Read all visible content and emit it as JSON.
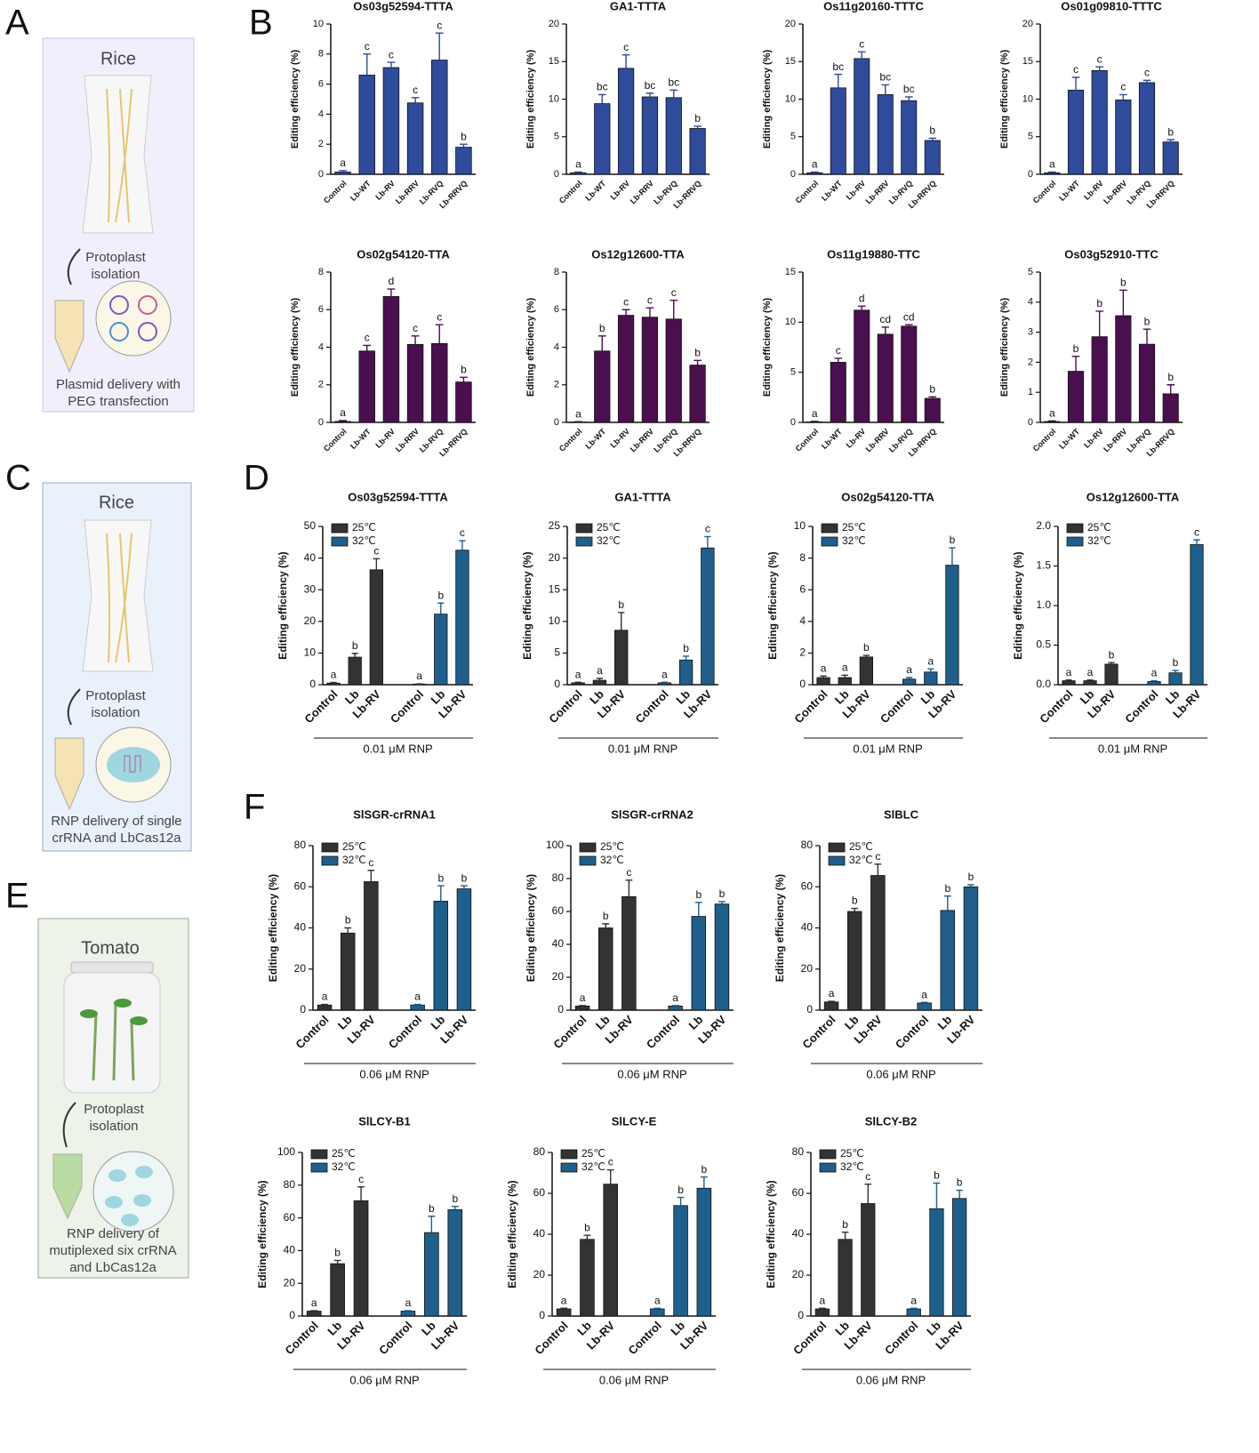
{
  "panel_labels": [
    "A",
    "B",
    "C",
    "D",
    "E",
    "F"
  ],
  "illustrations": [
    {
      "title": "Rice",
      "step": [
        "Protoplast",
        "isolation"
      ],
      "caption": [
        "Plasmid delivery with",
        "PEG transfection"
      ]
    },
    {
      "title": "Rice",
      "step": [
        "Protoplast",
        "isolation"
      ],
      "caption": [
        "RNP delivery of single",
        "crRNA and LbCas12a"
      ]
    },
    {
      "title": "Tomato",
      "step": [
        "Protoplast",
        "isolation"
      ],
      "caption": [
        "RNP delivery of",
        "mutiplexed six crRNA",
        "and LbCas12a"
      ]
    }
  ],
  "chart_data": [
    {
      "type": "bar",
      "title": "Os03g52594-TTTA",
      "ylabel": "Editing efficiency (%)",
      "color": "#2f4b9b",
      "categories": [
        "Control",
        "Lb-WT",
        "Lb-RV",
        "Lb-RRV",
        "Lb-RVQ",
        "Lb-RRVQ"
      ],
      "values": [
        0.15,
        6.6,
        7.1,
        4.75,
        7.6,
        1.8
      ],
      "errors": [
        0.1,
        1.4,
        0.35,
        0.35,
        1.8,
        0.2
      ],
      "annotations": [
        "a",
        "c",
        "c",
        "c",
        "c",
        "b"
      ],
      "ylim": [
        0,
        10
      ],
      "yticks": [
        0,
        2,
        4,
        6,
        8,
        10
      ]
    },
    {
      "type": "bar",
      "title": "GA1-TTTA",
      "ylabel": "Editing efficiency (%)",
      "color": "#2f4b9b",
      "categories": [
        "Control",
        "Lb-WT",
        "Lb-RV",
        "Lb-RRV",
        "Lb-RVQ",
        "Lb-RRVQ"
      ],
      "values": [
        0.2,
        9.4,
        14.1,
        10.3,
        10.2,
        6.1
      ],
      "errors": [
        0.1,
        1.2,
        1.8,
        0.5,
        1.0,
        0.3
      ],
      "annotations": [
        "a",
        "bc",
        "c",
        "bc",
        "bc",
        "b"
      ],
      "ylim": [
        0,
        20
      ],
      "yticks": [
        0,
        5,
        10,
        15,
        20
      ]
    },
    {
      "type": "bar",
      "title": "Os11g20160-TTTC",
      "ylabel": "Editing efficiency (%)",
      "color": "#2f4b9b",
      "categories": [
        "Control",
        "Lb-WT",
        "Lb-RV",
        "Lb-RRV",
        "Lb-RVQ",
        "Lb-RRVQ"
      ],
      "values": [
        0.2,
        11.5,
        15.4,
        10.6,
        9.8,
        4.5
      ],
      "errors": [
        0.1,
        1.8,
        0.9,
        1.3,
        0.5,
        0.3
      ],
      "annotations": [
        "a",
        "bc",
        "c",
        "bc",
        "bc",
        "b"
      ],
      "ylim": [
        0,
        20
      ],
      "yticks": [
        0,
        5,
        10,
        15,
        20
      ]
    },
    {
      "type": "bar",
      "title": "Os01g09810-TTTC",
      "ylabel": "Editing efficiency (%)",
      "color": "#2f4b9b",
      "categories": [
        "Control",
        "Lb-WT",
        "Lb-RV",
        "Lb-RRV",
        "Lb-RVQ",
        "Lb-RRVQ"
      ],
      "values": [
        0.2,
        11.2,
        13.8,
        9.9,
        12.2,
        4.3
      ],
      "errors": [
        0.1,
        1.7,
        0.5,
        0.7,
        0.3,
        0.3
      ],
      "annotations": [
        "a",
        "c",
        "c",
        "c",
        "c",
        "b"
      ],
      "ylim": [
        0,
        20
      ],
      "yticks": [
        0,
        5,
        10,
        15,
        20
      ]
    },
    {
      "type": "bar",
      "title": "Os02g54120-TTA",
      "ylabel": "Editing efficiency (%)",
      "color": "#4a0f4f",
      "categories": [
        "Control",
        "Lb-WT",
        "Lb-RV",
        "Lb-RRV",
        "Lb-RVQ",
        "Lb-RRVQ"
      ],
      "values": [
        0.05,
        3.8,
        6.7,
        4.15,
        4.2,
        2.15
      ],
      "errors": [
        0.05,
        0.3,
        0.4,
        0.45,
        1.0,
        0.25
      ],
      "annotations": [
        "a",
        "c",
        "d",
        "c",
        "c",
        "b"
      ],
      "ylim": [
        0,
        8
      ],
      "yticks": [
        0,
        2,
        4,
        6,
        8
      ]
    },
    {
      "type": "bar",
      "title": "Os12g12600-TTA",
      "ylabel": "Editing efficiency (%)",
      "color": "#4a0f4f",
      "categories": [
        "Control",
        "Lb-WT",
        "Lb-RV",
        "Lb-RRV",
        "Lb-RVQ",
        "Lb-RRVQ"
      ],
      "values": [
        0.02,
        3.8,
        5.7,
        5.6,
        5.5,
        3.05
      ],
      "errors": [
        0.02,
        0.8,
        0.3,
        0.5,
        1.0,
        0.25
      ],
      "annotations": [
        "a",
        "b",
        "c",
        "c",
        "c",
        "b"
      ],
      "ylim": [
        0,
        8
      ],
      "yticks": [
        0,
        2,
        4,
        6,
        8
      ]
    },
    {
      "type": "bar",
      "title": "Os11g19880-TTC",
      "ylabel": "Editing efficiency (%)",
      "color": "#4a0f4f",
      "categories": [
        "Control",
        "Lb-WT",
        "Lb-RV",
        "Lb-RRV",
        "Lb-RVQ",
        "Lb-RRVQ"
      ],
      "values": [
        0.05,
        6.0,
        11.2,
        8.8,
        9.6,
        2.4
      ],
      "errors": [
        0.05,
        0.4,
        0.4,
        0.7,
        0.15,
        0.15
      ],
      "annotations": [
        "a",
        "c",
        "d",
        "cd",
        "cd",
        "b"
      ],
      "ylim": [
        0,
        15
      ],
      "yticks": [
        0,
        5,
        10,
        15
      ]
    },
    {
      "type": "bar",
      "title": "Os03g52910-TTC",
      "ylabel": "Editing efficiency (%)",
      "color": "#4a0f4f",
      "categories": [
        "Control",
        "Lb-WT",
        "Lb-RV",
        "Lb-RRV",
        "Lb-RVQ",
        "Lb-RRVQ"
      ],
      "values": [
        0.03,
        1.7,
        2.85,
        3.55,
        2.6,
        0.95
      ],
      "errors": [
        0.02,
        0.5,
        0.85,
        0.85,
        0.5,
        0.3
      ],
      "annotations": [
        "a",
        "b",
        "b",
        "b",
        "b",
        "b"
      ],
      "ylim": [
        0,
        5
      ],
      "yticks": [
        0,
        1,
        2,
        3,
        4,
        5
      ]
    },
    {
      "type": "bar",
      "title": "Os03g52594-TTTA",
      "ylabel": "Editing efficiency (%)",
      "xlabel": "0.01 μM RNP",
      "legend": "upper left",
      "categories": [
        "Control",
        "Lb",
        "Lb-RV"
      ],
      "series": [
        {
          "name": "25℃",
          "color": "#333333",
          "values": [
            0.5,
            8.7,
            36.3
          ],
          "errors": [
            0.2,
            1.2,
            3.5
          ],
          "annotations": [
            "a",
            "b",
            "c"
          ]
        },
        {
          "name": "32℃",
          "color": "#1f5f8b",
          "values": [
            0.2,
            22.3,
            42.5
          ],
          "errors": [
            0.1,
            3.5,
            3.0
          ],
          "annotations": [
            "a",
            "b",
            "c"
          ]
        }
      ],
      "ylim": [
        0,
        50
      ],
      "yticks": [
        0,
        10,
        20,
        30,
        40,
        50
      ]
    },
    {
      "type": "bar",
      "title": "GA1-TTTA",
      "ylabel": "Editing efficiency (%)",
      "xlabel": "0.01 μM RNP",
      "legend": "upper left",
      "categories": [
        "Control",
        "Lb",
        "Lb-RV"
      ],
      "series": [
        {
          "name": "25℃",
          "color": "#333333",
          "values": [
            0.3,
            0.7,
            8.6
          ],
          "errors": [
            0.1,
            0.3,
            2.8
          ],
          "annotations": [
            "a",
            "a",
            "b"
          ]
        },
        {
          "name": "32℃",
          "color": "#1f5f8b",
          "values": [
            0.3,
            3.9,
            21.6
          ],
          "errors": [
            0.1,
            0.6,
            1.8
          ],
          "annotations": [
            "a",
            "b",
            "c"
          ]
        }
      ],
      "ylim": [
        0,
        25
      ],
      "yticks": [
        0,
        5,
        10,
        15,
        20,
        25
      ]
    },
    {
      "type": "bar",
      "title": "Os02g54120-TTA",
      "ylabel": "Editing efficiency (%)",
      "xlabel": "0.01 μM RNP",
      "legend": "upper left",
      "categories": [
        "Control",
        "Lb",
        "Lb-RV"
      ],
      "series": [
        {
          "name": "25℃",
          "color": "#333333",
          "values": [
            0.45,
            0.45,
            1.75
          ],
          "errors": [
            0.1,
            0.15,
            0.1
          ],
          "annotations": [
            "a",
            "a",
            "b"
          ]
        },
        {
          "name": "32℃",
          "color": "#1f5f8b",
          "values": [
            0.35,
            0.8,
            7.55
          ],
          "errors": [
            0.1,
            0.2,
            1.1
          ],
          "annotations": [
            "a",
            "a",
            "b"
          ]
        }
      ],
      "ylim": [
        0,
        10
      ],
      "yticks": [
        0,
        2,
        4,
        6,
        8,
        10
      ]
    },
    {
      "type": "bar",
      "title": "Os12g12600-TTA",
      "ylabel": "Editing efficiency (%)",
      "xlabel": "0.01 μM RNP",
      "legend": "upper left",
      "categories": [
        "Control",
        "Lb",
        "Lb-RV"
      ],
      "series": [
        {
          "name": "25℃",
          "color": "#333333",
          "values": [
            0.05,
            0.05,
            0.26
          ],
          "errors": [
            0.01,
            0.01,
            0.02
          ],
          "annotations": [
            "a",
            "a",
            "b"
          ]
        },
        {
          "name": "32℃",
          "color": "#1f5f8b",
          "values": [
            0.04,
            0.15,
            1.77
          ],
          "errors": [
            0.01,
            0.03,
            0.06
          ],
          "annotations": [
            "a",
            "b",
            "c"
          ]
        }
      ],
      "ylim": [
        0,
        2
      ],
      "yticks": [
        {
          "value": 0,
          "label": "0.0"
        },
        0.5,
        {
          "value": 1,
          "label": "1.0"
        },
        1.5,
        {
          "value": 2,
          "label": "2.0"
        }
      ]
    },
    {
      "type": "bar",
      "title": "SlSGR-crRNA1",
      "ylabel": "Editing efficiency (%)",
      "xlabel": "0.06 μM RNP",
      "legend": "upper left",
      "categories": [
        "Control",
        "Lb",
        "Lb-RV"
      ],
      "series": [
        {
          "name": "25℃",
          "color": "#333333",
          "values": [
            2.5,
            37.5,
            62.5
          ],
          "errors": [
            0.3,
            2.5,
            5.5
          ],
          "annotations": [
            "a",
            "b",
            "c"
          ]
        },
        {
          "name": "32℃",
          "color": "#1f5f8b",
          "values": [
            2.5,
            53,
            59
          ],
          "errors": [
            0.3,
            7.5,
            1.5
          ],
          "annotations": [
            "a",
            "b",
            "b"
          ]
        }
      ],
      "ylim": [
        0,
        80
      ],
      "yticks": [
        0,
        20,
        40,
        60,
        80
      ]
    },
    {
      "type": "bar",
      "title": "SlSGR-crRNA2",
      "ylabel": "Editing efficiency (%)",
      "xlabel": "0.06 μM RNP",
      "legend": "upper left",
      "categories": [
        "Control",
        "Lb",
        "Lb-RV"
      ],
      "series": [
        {
          "name": "25℃",
          "color": "#333333",
          "values": [
            2.5,
            50,
            69
          ],
          "errors": [
            0.3,
            2.5,
            10
          ],
          "annotations": [
            "a",
            "b",
            "c"
          ]
        },
        {
          "name": "32℃",
          "color": "#1f5f8b",
          "values": [
            2.5,
            57,
            64.5
          ],
          "errors": [
            0.3,
            8.5,
            1.5
          ],
          "annotations": [
            "a",
            "b",
            "b"
          ]
        }
      ],
      "ylim": [
        0,
        100
      ],
      "yticks": [
        0,
        20,
        40,
        60,
        80,
        100
      ]
    },
    {
      "type": "bar",
      "title": "SlBLC",
      "ylabel": "Editing efficiency (%)",
      "xlabel": "0.06 μM RNP",
      "legend": "upper left",
      "categories": [
        "Control",
        "Lb",
        "Lb-RV"
      ],
      "series": [
        {
          "name": "25℃",
          "color": "#333333",
          "values": [
            4,
            48,
            65.5
          ],
          "errors": [
            0.3,
            1.5,
            5.5
          ],
          "annotations": [
            "a",
            "b",
            "c"
          ]
        },
        {
          "name": "32℃",
          "color": "#1f5f8b",
          "values": [
            3.5,
            48.5,
            60
          ],
          "errors": [
            0.3,
            7,
            1
          ],
          "annotations": [
            "a",
            "b",
            "b"
          ]
        }
      ],
      "ylim": [
        0,
        80
      ],
      "yticks": [
        0,
        20,
        40,
        60,
        80
      ]
    },
    {
      "type": "bar",
      "title": "SlLCY-B1",
      "ylabel": "Editing efficiency (%)",
      "xlabel": "0.06 μM RNP",
      "legend": "upper left",
      "categories": [
        "Control",
        "Lb",
        "Lb-RV"
      ],
      "series": [
        {
          "name": "25℃",
          "color": "#333333",
          "values": [
            3,
            32,
            70.5
          ],
          "errors": [
            0.3,
            2,
            8.5
          ],
          "annotations": [
            "a",
            "b",
            "c"
          ]
        },
        {
          "name": "32℃",
          "color": "#1f5f8b",
          "values": [
            3,
            51,
            65
          ],
          "errors": [
            0.3,
            10,
            2
          ],
          "annotations": [
            "a",
            "b",
            "b"
          ]
        }
      ],
      "ylim": [
        0,
        100
      ],
      "yticks": [
        0,
        20,
        40,
        60,
        80,
        100
      ]
    },
    {
      "type": "bar",
      "title": "SlLCY-E",
      "ylabel": "Editing efficiency (%)",
      "xlabel": "0.06 μM RNP",
      "legend": "upper left",
      "categories": [
        "Control",
        "Lb",
        "Lb-RV"
      ],
      "series": [
        {
          "name": "25℃",
          "color": "#333333",
          "values": [
            3.5,
            37.5,
            64.5
          ],
          "errors": [
            0.3,
            2,
            7
          ],
          "annotations": [
            "a",
            "b",
            "c"
          ]
        },
        {
          "name": "32℃",
          "color": "#1f5f8b",
          "values": [
            3.5,
            54,
            62.5
          ],
          "errors": [
            0.3,
            4,
            5.5
          ],
          "annotations": [
            "a",
            "b",
            "b"
          ]
        }
      ],
      "ylim": [
        0,
        80
      ],
      "yticks": [
        0,
        20,
        40,
        60,
        80
      ]
    },
    {
      "type": "bar",
      "title": "SlLCY-B2",
      "ylabel": "Editing efficiency (%)",
      "xlabel": "0.06 μM RNP",
      "legend": "upper left",
      "categories": [
        "Control",
        "Lb",
        "Lb-RV"
      ],
      "series": [
        {
          "name": "25℃",
          "color": "#333333",
          "values": [
            3.5,
            37.5,
            55
          ],
          "errors": [
            0.3,
            3.5,
            9.5
          ],
          "annotations": [
            "a",
            "b",
            "c"
          ]
        },
        {
          "name": "32℃",
          "color": "#1f5f8b",
          "values": [
            3.5,
            52.5,
            57.5
          ],
          "errors": [
            0.3,
            12.5,
            4
          ],
          "annotations": [
            "a",
            "b",
            "b"
          ]
        }
      ],
      "ylim": [
        0,
        80
      ],
      "yticks": [
        0,
        20,
        40,
        60,
        80
      ]
    }
  ]
}
